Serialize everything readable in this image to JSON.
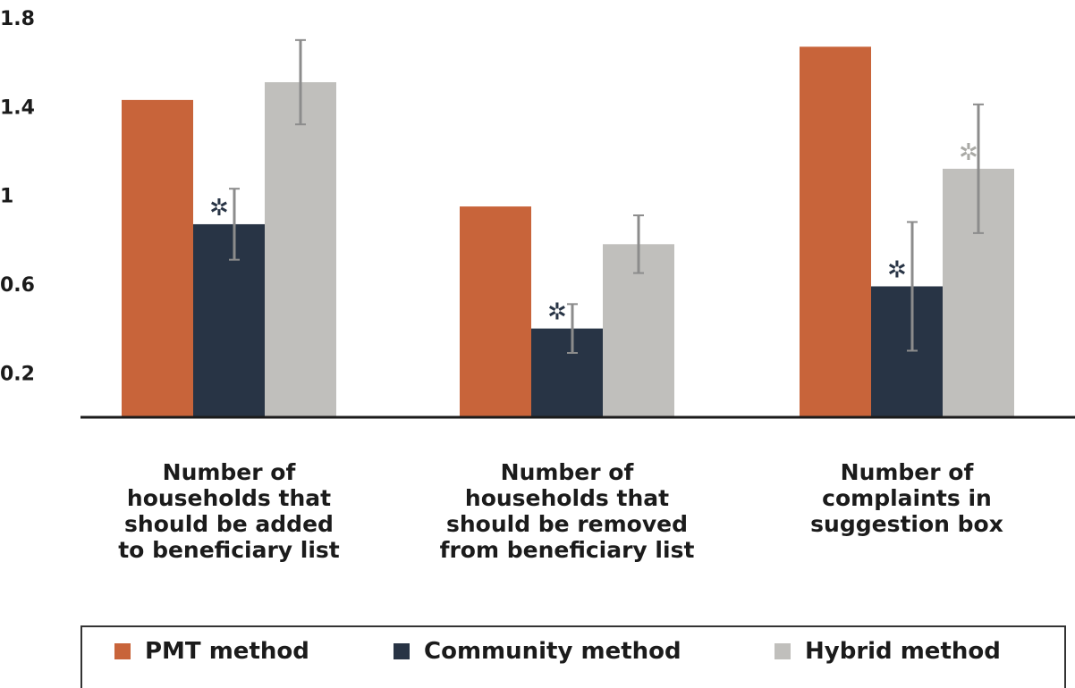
{
  "chart_data": {
    "type": "bar",
    "categories": [
      [
        "Number of",
        "households that",
        "should be added",
        "to beneficiary list"
      ],
      [
        "Number of",
        "households that",
        "should be removed",
        "from beneficiary list"
      ],
      [
        "Number of",
        "complaints in",
        "suggestion box"
      ]
    ],
    "series": [
      {
        "name": "PMT method",
        "color": "#c8643a",
        "values": [
          1.43,
          0.95,
          1.67
        ],
        "error": [
          null,
          null,
          null
        ],
        "stars": [
          false,
          false,
          false
        ]
      },
      {
        "name": "Community method",
        "color": "#283445",
        "values": [
          0.87,
          0.4,
          0.59
        ],
        "error": [
          0.16,
          0.11,
          0.29
        ],
        "stars": [
          true,
          true,
          true
        ]
      },
      {
        "name": "Hybrid method",
        "color": "#c0bfbc",
        "values": [
          1.51,
          0.78,
          1.12
        ],
        "error": [
          0.19,
          0.13,
          0.29
        ],
        "stars": [
          false,
          false,
          true
        ]
      }
    ],
    "yticks": [
      "1.8",
      "1.4",
      "1",
      "0.6",
      "0.2"
    ],
    "ytick_values": [
      1.8,
      1.4,
      1.0,
      0.6,
      0.2
    ],
    "ylim": [
      0,
      1.8
    ],
    "star_symbol": "✲",
    "legend_placement": "bottom"
  }
}
